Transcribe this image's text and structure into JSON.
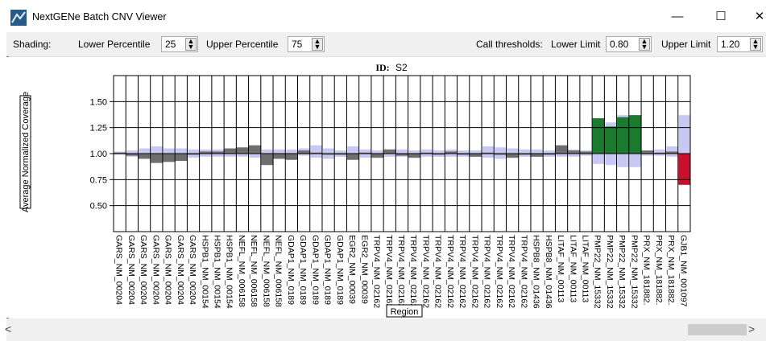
{
  "window": {
    "title": "NextGENe Batch CNV Viewer",
    "minimize": "—",
    "maximize": "☐",
    "close": "✕"
  },
  "toolbar": {
    "shading_label": "Shading:",
    "lower_percentile_label": "Lower Percentile",
    "lower_percentile_value": "25",
    "upper_percentile_label": "Upper Percentile",
    "upper_percentile_value": "75",
    "call_thresholds_label": "Call thresholds:",
    "lower_limit_label": "Lower Limit",
    "lower_limit_value": "0.80",
    "upper_limit_label": "Upper Limit",
    "upper_limit_value": "1.20"
  },
  "scrollbar": {
    "left_arrow": "<",
    "right_arrow": ">"
  },
  "colors": {
    "normal": "#6e6e6e",
    "gain": "#1a7a2e",
    "gain_dark": "#0f5a22",
    "loss": "#c8102e",
    "shading": "#c8c8f4"
  },
  "chart_data": {
    "type": "bar",
    "title_prefix": "ID:",
    "title": "S2",
    "xlabel": "Region",
    "ylabel": "Average Normalized Coverage",
    "ylim": [
      0.25,
      1.75
    ],
    "yticks": [
      "1.50",
      "1.25",
      "1.00",
      "0.75",
      "0.50"
    ],
    "ytick_values": [
      1.5,
      1.25,
      1.0,
      0.75,
      0.5
    ],
    "baseline": 1.0,
    "categories": [
      "GARS_NM_00204",
      "GARS_NM_00204",
      "GARS_NM_00204",
      "GARS_NM_00204",
      "GARS_NM_00204",
      "GARS_NM_00204",
      "GARS_NM_00204",
      "HSPB1_NM_00154",
      "HSPB1_NM_00154",
      "HSPB1_NM_00154",
      "NEFL_NM_006158",
      "NEFL_NM_006158",
      "NEFL_NM_006158",
      "NEFL_NM_006158",
      "GDAP1_NM_0189",
      "GDAP1_NM_0189",
      "GDAP1_NM_0189",
      "GDAP1_NM_0189",
      "GDAP1_NM_0189",
      "EGR2_NM_00039",
      "EGR2_NM_00039",
      "TRPV4_NM_02162",
      "TRPV4_NM_02162",
      "TRPV4_NM_02162",
      "TRPV4_NM_02162",
      "TRPV4_NM_02162",
      "TRPV4_NM_02162",
      "TRPV4_NM_02162",
      "TRPV4_NM_02162",
      "TRPV4_NM_02162",
      "TRPV4_NM_02162",
      "TRPV4_NM_02162",
      "TRPV4_NM_02162",
      "TRPV4_NM_02162",
      "HSPB8_NM_01436",
      "HSPB8_NM_01436",
      "LITAF_NM_00113",
      "LITAF_NM_00113",
      "LITAF_NM_00113",
      "PMP22_NM_15332",
      "PMP22_NM_15332",
      "PMP22_NM_15332",
      "PMP22_NM_15332",
      "PRX_NM_181882.",
      "PRX_NM_181882.",
      "PRX_NM_181882.",
      "GJB1_NM_001097"
    ],
    "values": [
      1.01,
      0.98,
      0.95,
      0.91,
      0.92,
      0.93,
      1.0,
      1.02,
      1.02,
      1.05,
      1.06,
      1.08,
      0.89,
      0.95,
      0.94,
      1.03,
      1.01,
      0.99,
      1.0,
      0.94,
      1.01,
      0.96,
      1.04,
      0.98,
      0.96,
      1.01,
      0.99,
      1.02,
      1.0,
      0.97,
      1.01,
      0.99,
      0.96,
      1.0,
      0.97,
      1.0,
      1.08,
      1.03,
      1.02,
      1.34,
      1.26,
      1.35,
      1.37,
      1.03,
      1.01,
      1.02,
      0.7
    ],
    "shade_low": [
      0.99,
      0.97,
      0.95,
      0.96,
      0.94,
      0.94,
      0.96,
      0.97,
      0.97,
      0.97,
      0.97,
      0.96,
      0.96,
      0.97,
      0.96,
      0.98,
      0.96,
      0.95,
      0.97,
      0.96,
      0.96,
      0.97,
      0.97,
      0.97,
      0.97,
      0.97,
      0.97,
      0.97,
      0.97,
      0.97,
      0.96,
      0.95,
      0.97,
      0.97,
      0.97,
      0.97,
      0.97,
      0.97,
      0.98,
      0.9,
      0.89,
      0.87,
      0.87,
      0.98,
      0.98,
      0.97,
      0.9
    ],
    "shade_high": [
      1.02,
      1.03,
      1.05,
      1.07,
      1.05,
      1.05,
      1.04,
      1.04,
      1.04,
      1.04,
      1.05,
      1.05,
      1.04,
      1.04,
      1.04,
      1.05,
      1.08,
      1.05,
      1.03,
      1.07,
      1.04,
      1.03,
      1.04,
      1.04,
      1.03,
      1.04,
      1.03,
      1.04,
      1.03,
      1.03,
      1.07,
      1.06,
      1.05,
      1.04,
      1.04,
      1.03,
      1.04,
      1.04,
      1.03,
      1.28,
      1.3,
      1.37,
      1.37,
      1.03,
      1.04,
      1.07,
      1.37
    ],
    "status": [
      "n",
      "n",
      "n",
      "n",
      "n",
      "n",
      "n",
      "n",
      "n",
      "n",
      "n",
      "n",
      "n",
      "n",
      "n",
      "n",
      "n",
      "n",
      "n",
      "n",
      "n",
      "n",
      "n",
      "n",
      "n",
      "n",
      "n",
      "n",
      "n",
      "n",
      "n",
      "n",
      "n",
      "n",
      "n",
      "n",
      "n",
      "n",
      "n",
      "gain",
      "gain",
      "gain",
      "gain",
      "n",
      "n",
      "n",
      "loss"
    ]
  }
}
